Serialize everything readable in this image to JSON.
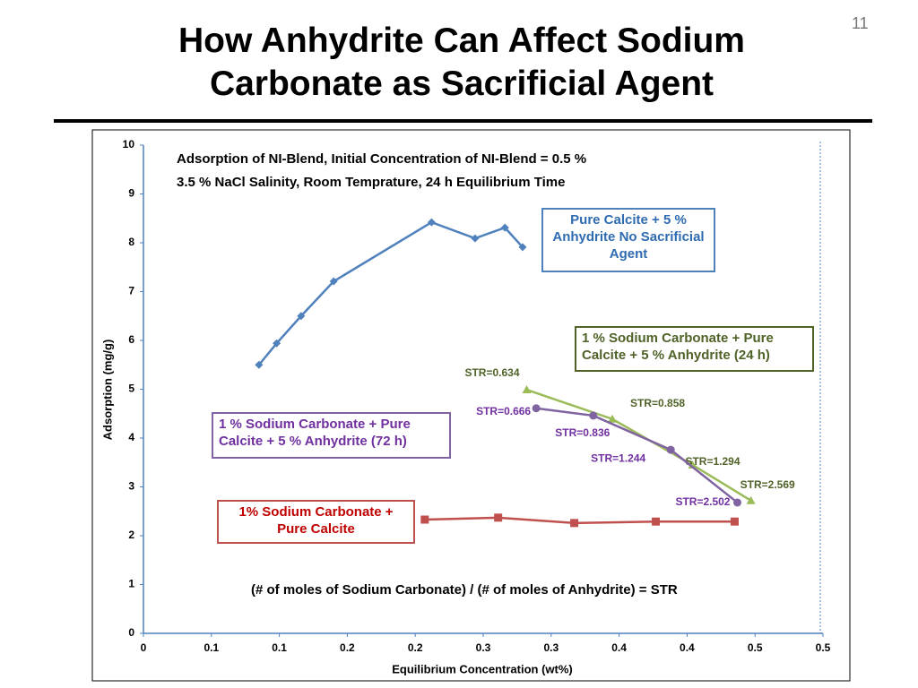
{
  "page_number": "11",
  "chart_data": {
    "type": "line",
    "title": "How Anhydrite Can Affect Sodium Carbonate as Sacrificial Agent",
    "annotations": [
      "Adsorption of NI-Blend, Initial Concentration of NI-Blend = 0.5 %",
      "3.5 % NaCl Salinity, Room Temprature, 24 h Equilibrium Time",
      "(# of moles of Sodium Carbonate) / (# of moles of Anhydrite) = STR"
    ],
    "x_label": "Equilibrium Concentration (wt%)",
    "y_label": "Adsorption (mg/g)",
    "xlim": [
      0,
      0.5
    ],
    "ylim": [
      0,
      10
    ],
    "xticks": [
      0,
      {
        "value": 0.05,
        "label": "0.1"
      },
      0.1,
      {
        "value": 0.15,
        "label": "0.2"
      },
      0.2,
      {
        "value": 0.25,
        "label": "0.3"
      },
      0.3,
      {
        "value": 0.35,
        "label": "0.4"
      },
      0.4,
      {
        "value": 0.45,
        "label": "0.5"
      },
      0.5
    ],
    "yticks": [
      0,
      1,
      2,
      3,
      4,
      5,
      6,
      7,
      8,
      9,
      10
    ],
    "series": [
      {
        "name": "Pure Calcite + 5 % Anhydrite No Sacrificial Agent",
        "color": "#4f81bd",
        "marker": "diamond",
        "x": [
          0.085,
          0.098,
          0.116,
          0.14,
          0.212,
          0.244,
          0.266,
          0.279
        ],
        "values": [
          5.5,
          5.94,
          6.5,
          7.21,
          8.42,
          8.09,
          8.31,
          7.91
        ]
      },
      {
        "name": "1 % Sodium Carbonate + Pure Calcite + 5 % Anhydrite (24 h)",
        "color": "#9bbb59",
        "marker": "triangle",
        "x": [
          0.282,
          0.345,
          0.404,
          0.447
        ],
        "values": [
          4.99,
          4.39,
          3.45,
          2.72
        ],
        "point_labels": [
          "STR=0.634",
          "STR=0.858",
          "STR=1.294",
          "STR=2.569"
        ]
      },
      {
        "name": "1 % Sodium Carbonate + Pure Calcite + 5 % Anhydrite (72 h)",
        "color": "#8064a2",
        "marker": "circle",
        "x": [
          0.289,
          0.331,
          0.388,
          0.437
        ],
        "values": [
          4.61,
          4.46,
          3.76,
          2.68
        ],
        "point_labels": [
          "STR=0.666",
          "STR=0.836",
          "STR=1.244",
          "STR=2.502"
        ]
      },
      {
        "name": "1% Sodium Carbonate + Pure Calcite",
        "color": "#c0504d",
        "marker": "square",
        "x": [
          0.207,
          0.261,
          0.317,
          0.377,
          0.435
        ],
        "values": [
          2.33,
          2.37,
          2.26,
          2.29,
          2.29
        ]
      }
    ]
  }
}
